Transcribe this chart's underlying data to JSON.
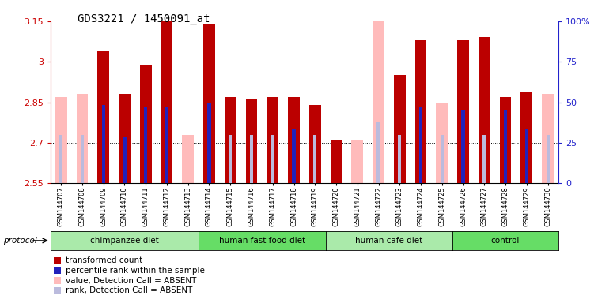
{
  "title": "GDS3221 / 1450091_at",
  "samples": [
    "GSM144707",
    "GSM144708",
    "GSM144709",
    "GSM144710",
    "GSM144711",
    "GSM144712",
    "GSM144713",
    "GSM144714",
    "GSM144715",
    "GSM144716",
    "GSM144717",
    "GSM144718",
    "GSM144719",
    "GSM144720",
    "GSM144721",
    "GSM144722",
    "GSM144723",
    "GSM144724",
    "GSM144725",
    "GSM144726",
    "GSM144727",
    "GSM144728",
    "GSM144729",
    "GSM144730"
  ],
  "pink_values": [
    2.87,
    2.88,
    3.04,
    2.88,
    2.99,
    3.2,
    2.73,
    3.14,
    2.87,
    2.86,
    2.87,
    2.87,
    2.84,
    2.71,
    2.71,
    3.18,
    2.95,
    3.08,
    2.85,
    3.08,
    3.09,
    2.87,
    2.89,
    2.88
  ],
  "red_values": [
    0,
    0,
    3.04,
    2.88,
    2.99,
    3.2,
    0,
    3.14,
    2.87,
    2.86,
    2.87,
    2.87,
    2.84,
    2.71,
    0,
    0,
    2.95,
    3.08,
    0,
    3.08,
    3.09,
    2.87,
    2.89,
    0
  ],
  "lavender_values": [
    2.73,
    2.73,
    2.84,
    2.72,
    2.83,
    2.83,
    0,
    2.85,
    2.73,
    2.73,
    2.73,
    2.75,
    2.73,
    0,
    0,
    2.78,
    2.73,
    2.83,
    2.73,
    2.82,
    2.73,
    2.82,
    2.75,
    2.73
  ],
  "blue_values": [
    0,
    0,
    2.84,
    2.72,
    2.83,
    2.83,
    0,
    2.85,
    0,
    0,
    0,
    2.75,
    0,
    0,
    0,
    0,
    0,
    2.83,
    0,
    2.82,
    0,
    2.82,
    2.75,
    0
  ],
  "groups": [
    {
      "label": "chimpanzee diet",
      "start": 0,
      "end": 7,
      "color": "#aaeaaa"
    },
    {
      "label": "human fast food diet",
      "start": 7,
      "end": 13,
      "color": "#66dd66"
    },
    {
      "label": "human cafe diet",
      "start": 13,
      "end": 19,
      "color": "#aaeaaa"
    },
    {
      "label": "control",
      "start": 19,
      "end": 24,
      "color": "#66dd66"
    }
  ],
  "ylim": [
    2.55,
    3.15
  ],
  "yticks": [
    2.55,
    2.7,
    2.85,
    3.0,
    3.15
  ],
  "ytick_labels": [
    "2.55",
    "2.7",
    "2.85",
    "3",
    "3.15"
  ],
  "right_yticks_pct": [
    0,
    25,
    50,
    75,
    100
  ],
  "right_ytick_labels": [
    "0",
    "25",
    "50",
    "75",
    "100%"
  ],
  "bar_width": 0.55,
  "red_color": "#bb0000",
  "pink_color": "#ffbbbb",
  "blue_color": "#2222bb",
  "lavender_color": "#bbbbdd",
  "left_axis_color": "#cc0000",
  "right_axis_color": "#2222cc",
  "title_fontsize": 10,
  "grid_yticks": [
    2.7,
    2.85,
    3.0
  ],
  "legend_items": [
    [
      "#bb0000",
      "transformed count"
    ],
    [
      "#2222bb",
      "percentile rank within the sample"
    ],
    [
      "#ffbbbb",
      "value, Detection Call = ABSENT"
    ],
    [
      "#bbbbdd",
      "rank, Detection Call = ABSENT"
    ]
  ]
}
